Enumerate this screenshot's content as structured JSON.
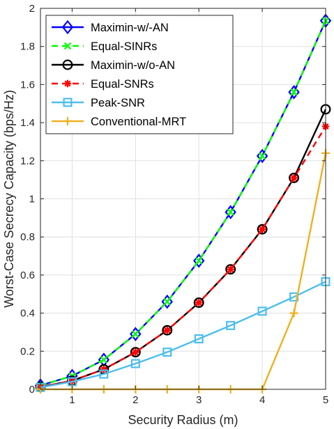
{
  "chart_data": {
    "type": "line",
    "xlabel": "Security Radius (m)",
    "ylabel": "Worst-Case Secrecy Capacity (bps/Hz)",
    "xlim": [
      0.5,
      5
    ],
    "ylim": [
      0,
      2
    ],
    "xticks": [
      "1",
      "2",
      "3",
      "4",
      "5"
    ],
    "yticks": [
      "0",
      "0.2",
      "0.4",
      "0.6",
      "0.8",
      "1",
      "1.2",
      "1.4",
      "1.6",
      "1.8",
      "2"
    ],
    "grid": true,
    "legend_position": "top-left",
    "x": [
      0.5,
      1,
      1.5,
      2,
      2.5,
      3,
      3.5,
      4,
      4.5,
      5
    ],
    "series": [
      {
        "name": "Maximin-w/-AN",
        "color": "#0000ff",
        "marker": "diamond",
        "line": "solid",
        "values": [
          0.02,
          0.07,
          0.155,
          0.29,
          0.46,
          0.675,
          0.93,
          1.225,
          1.56,
          1.935
        ]
      },
      {
        "name": "Equal-SINRs",
        "color": "#00ff00",
        "marker": "x",
        "line": "dashed",
        "values": [
          0.02,
          0.07,
          0.155,
          0.29,
          0.46,
          0.675,
          0.93,
          1.225,
          1.56,
          1.935
        ]
      },
      {
        "name": "Maximin-w/o-AN",
        "color": "#000000",
        "marker": "circle",
        "line": "solid",
        "values": [
          0.012,
          0.045,
          0.105,
          0.195,
          0.31,
          0.455,
          0.63,
          0.84,
          1.11,
          1.47
        ]
      },
      {
        "name": "Equal-SNRs",
        "color": "#ff0000",
        "marker": "asterisk",
        "line": "dashed",
        "values": [
          0.012,
          0.045,
          0.105,
          0.195,
          0.31,
          0.455,
          0.63,
          0.84,
          1.11,
          1.38
        ]
      },
      {
        "name": "Peak-SNR",
        "color": "#4dbeee",
        "marker": "square",
        "line": "solid",
        "values": [
          0.01,
          0.04,
          0.08,
          0.135,
          0.195,
          0.265,
          0.335,
          0.41,
          0.485,
          0.565
        ]
      },
      {
        "name": "Conventional-MRT",
        "color": "#edb120",
        "marker": "plus",
        "line": "solid",
        "values": [
          0,
          0,
          0,
          0,
          0,
          0,
          0,
          0,
          0.4,
          1.24
        ]
      }
    ]
  }
}
